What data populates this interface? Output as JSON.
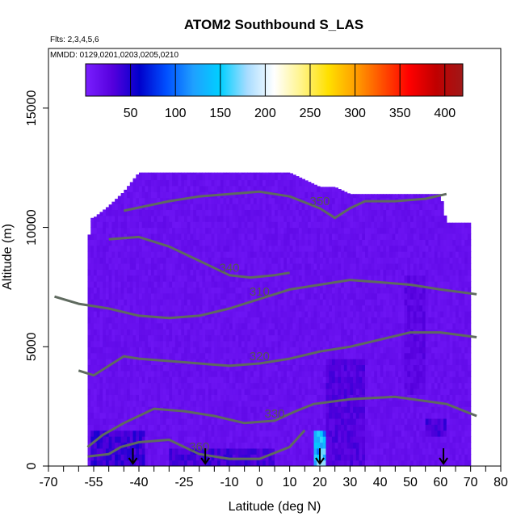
{
  "chart_data": {
    "type": "heatmap",
    "title": "ATOM2 Southbound S_LAS",
    "subtitle_flights": "Flts: 2,3,4,5,6",
    "subtitle_dates": "MMDD: 0129,0201,0203,0205,0210",
    "xlabel": "Latitude (deg N)",
    "ylabel": "Altitude (m)",
    "xlim": [
      -70,
      80
    ],
    "ylim": [
      0,
      17500
    ],
    "x_ticks": [
      -70,
      -55,
      -40,
      -25,
      -10,
      0,
      10,
      20,
      30,
      40,
      50,
      60,
      70,
      80
    ],
    "x_tick_labels": [
      "-70",
      "-55",
      "-40",
      "-25",
      "-10",
      "0",
      "10",
      "20",
      "30",
      "40",
      "50",
      "60",
      "70",
      "80"
    ],
    "x_minor_ticks": [
      -65,
      -60,
      -50,
      -45,
      -35,
      -30,
      -20,
      -15,
      -5,
      5,
      15,
      25,
      35,
      45,
      55,
      65,
      75
    ],
    "y_ticks": [
      0,
      5000,
      10000,
      15000
    ],
    "y_tick_labels": [
      "0",
      "5000",
      "10000",
      "15000"
    ],
    "colorbar": {
      "range": [
        0,
        420
      ],
      "ticks": [
        50,
        100,
        150,
        200,
        250,
        300,
        350,
        400
      ],
      "tick_labels": [
        "50",
        "100",
        "150",
        "200",
        "250",
        "300",
        "350",
        "400"
      ],
      "colors": [
        "#7a1fff",
        "#5500dd",
        "#0000cc",
        "#0050ff",
        "#1fa0ff",
        "#00d0ff",
        "#a8dcff",
        "#ffffff",
        "#fff48a",
        "#ffe000",
        "#ffa000",
        "#ff5000",
        "#ff0000",
        "#c00000",
        "#a01818"
      ]
    },
    "field": {
      "background_value": 10,
      "envelope_lat": [
        -57,
        -56,
        -55,
        -50,
        -45,
        -40,
        -35,
        -30,
        -20,
        -10,
        0,
        10,
        20,
        25,
        30,
        40,
        50,
        60,
        62,
        70
      ],
      "envelope_top_m": [
        9000,
        10400,
        10400,
        10900,
        11500,
        12300,
        12300,
        12300,
        12300,
        12300,
        12300,
        12300,
        11700,
        11700,
        11400,
        11400,
        11400,
        11400,
        10200,
        10200
      ],
      "enhanced_regions": [
        {
          "lat_range": [
            -56,
            -38
          ],
          "alt_range": [
            0,
            1500
          ],
          "value": 40
        },
        {
          "lat_range": [
            -30,
            5
          ],
          "alt_range": [
            0,
            700
          ],
          "value": 35
        },
        {
          "lat_range": [
            18,
            22
          ],
          "alt_range": [
            0,
            1500
          ],
          "value": 140
        },
        {
          "lat_range": [
            22,
            35
          ],
          "alt_range": [
            0,
            4500
          ],
          "value": 30
        },
        {
          "lat_range": [
            55,
            62
          ],
          "alt_range": [
            1200,
            2000
          ],
          "value": 35
        },
        {
          "lat_range": [
            48,
            55
          ],
          "alt_range": [
            3000,
            8000
          ],
          "value": 25
        }
      ]
    },
    "contours": [
      {
        "label": "360",
        "lat": [
          -57,
          -50,
          -46,
          -40,
          -30,
          -20,
          -10,
          0,
          10,
          15
        ],
        "alt_m": [
          400,
          500,
          800,
          1000,
          1100,
          500,
          300,
          300,
          800,
          1500
        ]
      },
      {
        "label": "330",
        "lat": [
          -57,
          -52,
          -45,
          -35,
          -25,
          -15,
          -5,
          5,
          12,
          18,
          30,
          45,
          62,
          72
        ],
        "alt_m": [
          800,
          1300,
          1800,
          2400,
          2300,
          2100,
          1800,
          1900,
          2300,
          2600,
          2800,
          2900,
          2600,
          2100
        ]
      },
      {
        "label": "320",
        "lat": [
          -60,
          -55,
          -50,
          -45,
          -40,
          -30,
          -20,
          -10,
          0,
          10,
          20,
          30,
          40,
          50,
          60,
          72
        ],
        "alt_m": [
          4000,
          3800,
          4200,
          4600,
          4500,
          4400,
          4300,
          4200,
          4300,
          4500,
          4800,
          5000,
          5300,
          5600,
          5600,
          5400
        ]
      },
      {
        "label": "310",
        "lat": [
          -68,
          -60,
          -50,
          -40,
          -30,
          -20,
          -10,
          0,
          10,
          20,
          30,
          40,
          50,
          60,
          72
        ],
        "alt_m": [
          7100,
          6800,
          6600,
          6300,
          6200,
          6300,
          6600,
          7000,
          7400,
          7600,
          7800,
          7700,
          7600,
          7400,
          7200
        ]
      },
      {
        "label": "340",
        "lat": [
          -50,
          -40,
          -30,
          -20,
          -10,
          -3,
          5,
          10
        ],
        "alt_m": [
          9500,
          9600,
          9200,
          8600,
          8000,
          7900,
          8000,
          8100
        ]
      },
      {
        "label": "350",
        "lat": [
          -45,
          -30,
          -20,
          -10,
          0,
          10,
          20,
          25,
          30,
          35,
          45,
          55,
          62
        ],
        "alt_m": [
          10700,
          11100,
          11300,
          11400,
          11500,
          11300,
          10800,
          10400,
          10800,
          11100,
          11100,
          11200,
          11400
        ]
      }
    ],
    "flight_markers_lat": [
      -42,
      -18,
      20,
      61
    ]
  }
}
